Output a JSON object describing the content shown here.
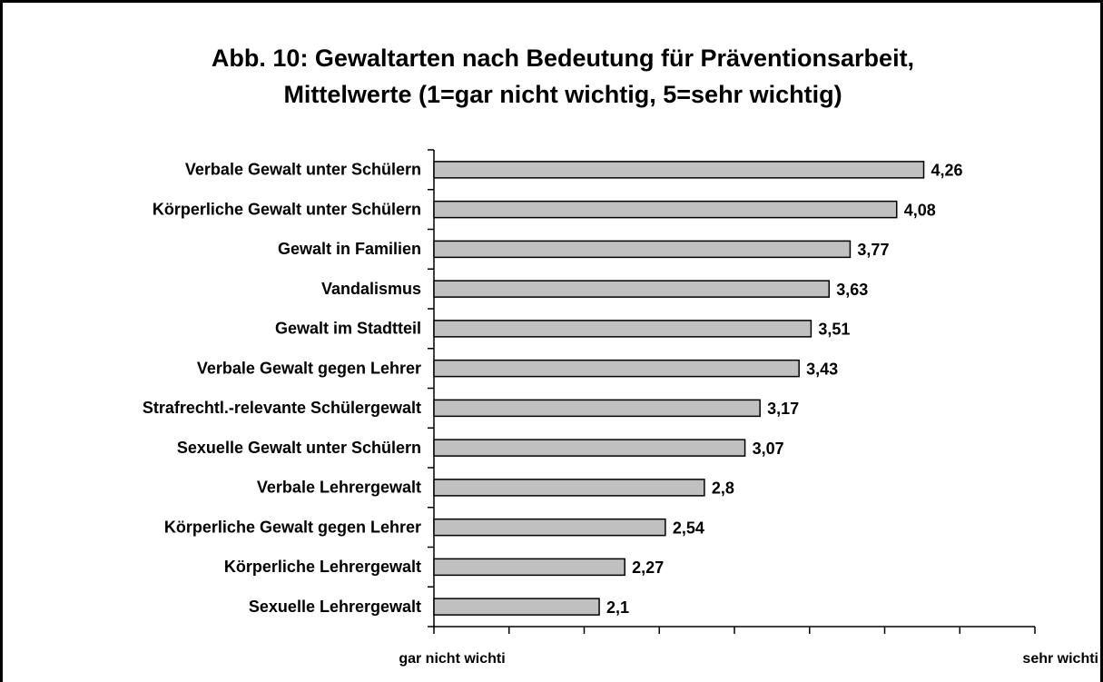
{
  "chart_data": {
    "type": "bar",
    "orientation": "horizontal",
    "title": [
      "Abb. 10: Gewaltarten nach Bedeutung für Präventionsarbeit,",
      "Mittelwerte (1=gar nicht wichtig, 5=sehr wichtig)"
    ],
    "categories": [
      "Verbale Gewalt unter Schülern",
      "Körperliche Gewalt unter Schülern",
      "Gewalt in Familien",
      "Vandalismus",
      "Gewalt im Stadtteil",
      "Verbale Gewalt gegen Lehrer",
      "Strafrechtl.-relevante Schülergewalt",
      "Sexuelle Gewalt unter Schülern",
      "Verbale Lehrergewalt",
      "Körperliche Gewalt gegen Lehrer",
      "Körperliche Lehrergewalt",
      "Sexuelle Lehrergewalt"
    ],
    "values": [
      4.26,
      4.08,
      3.77,
      3.63,
      3.51,
      3.43,
      3.17,
      3.07,
      2.8,
      2.54,
      2.27,
      2.1
    ],
    "value_labels": [
      "4,26",
      "4,08",
      "3,77",
      "3,63",
      "3,51",
      "3,43",
      "3,17",
      "3,07",
      "2,8",
      "2,54",
      "2,27",
      "2,1"
    ],
    "color": "#c0c0c0",
    "xlim": [
      1,
      5
    ],
    "xticks": [
      {
        "value": 1,
        "label": "gar nicht wichti"
      },
      {
        "value": 1.5,
        "label": null
      },
      {
        "value": 2,
        "label": null
      },
      {
        "value": 2.5,
        "label": null
      },
      {
        "value": 3,
        "label": null
      },
      {
        "value": 3.5,
        "label": null
      },
      {
        "value": 4,
        "label": null
      },
      {
        "value": 4.5,
        "label": null
      },
      {
        "value": 5,
        "label": "sehr wichti"
      }
    ],
    "grid": false
  }
}
